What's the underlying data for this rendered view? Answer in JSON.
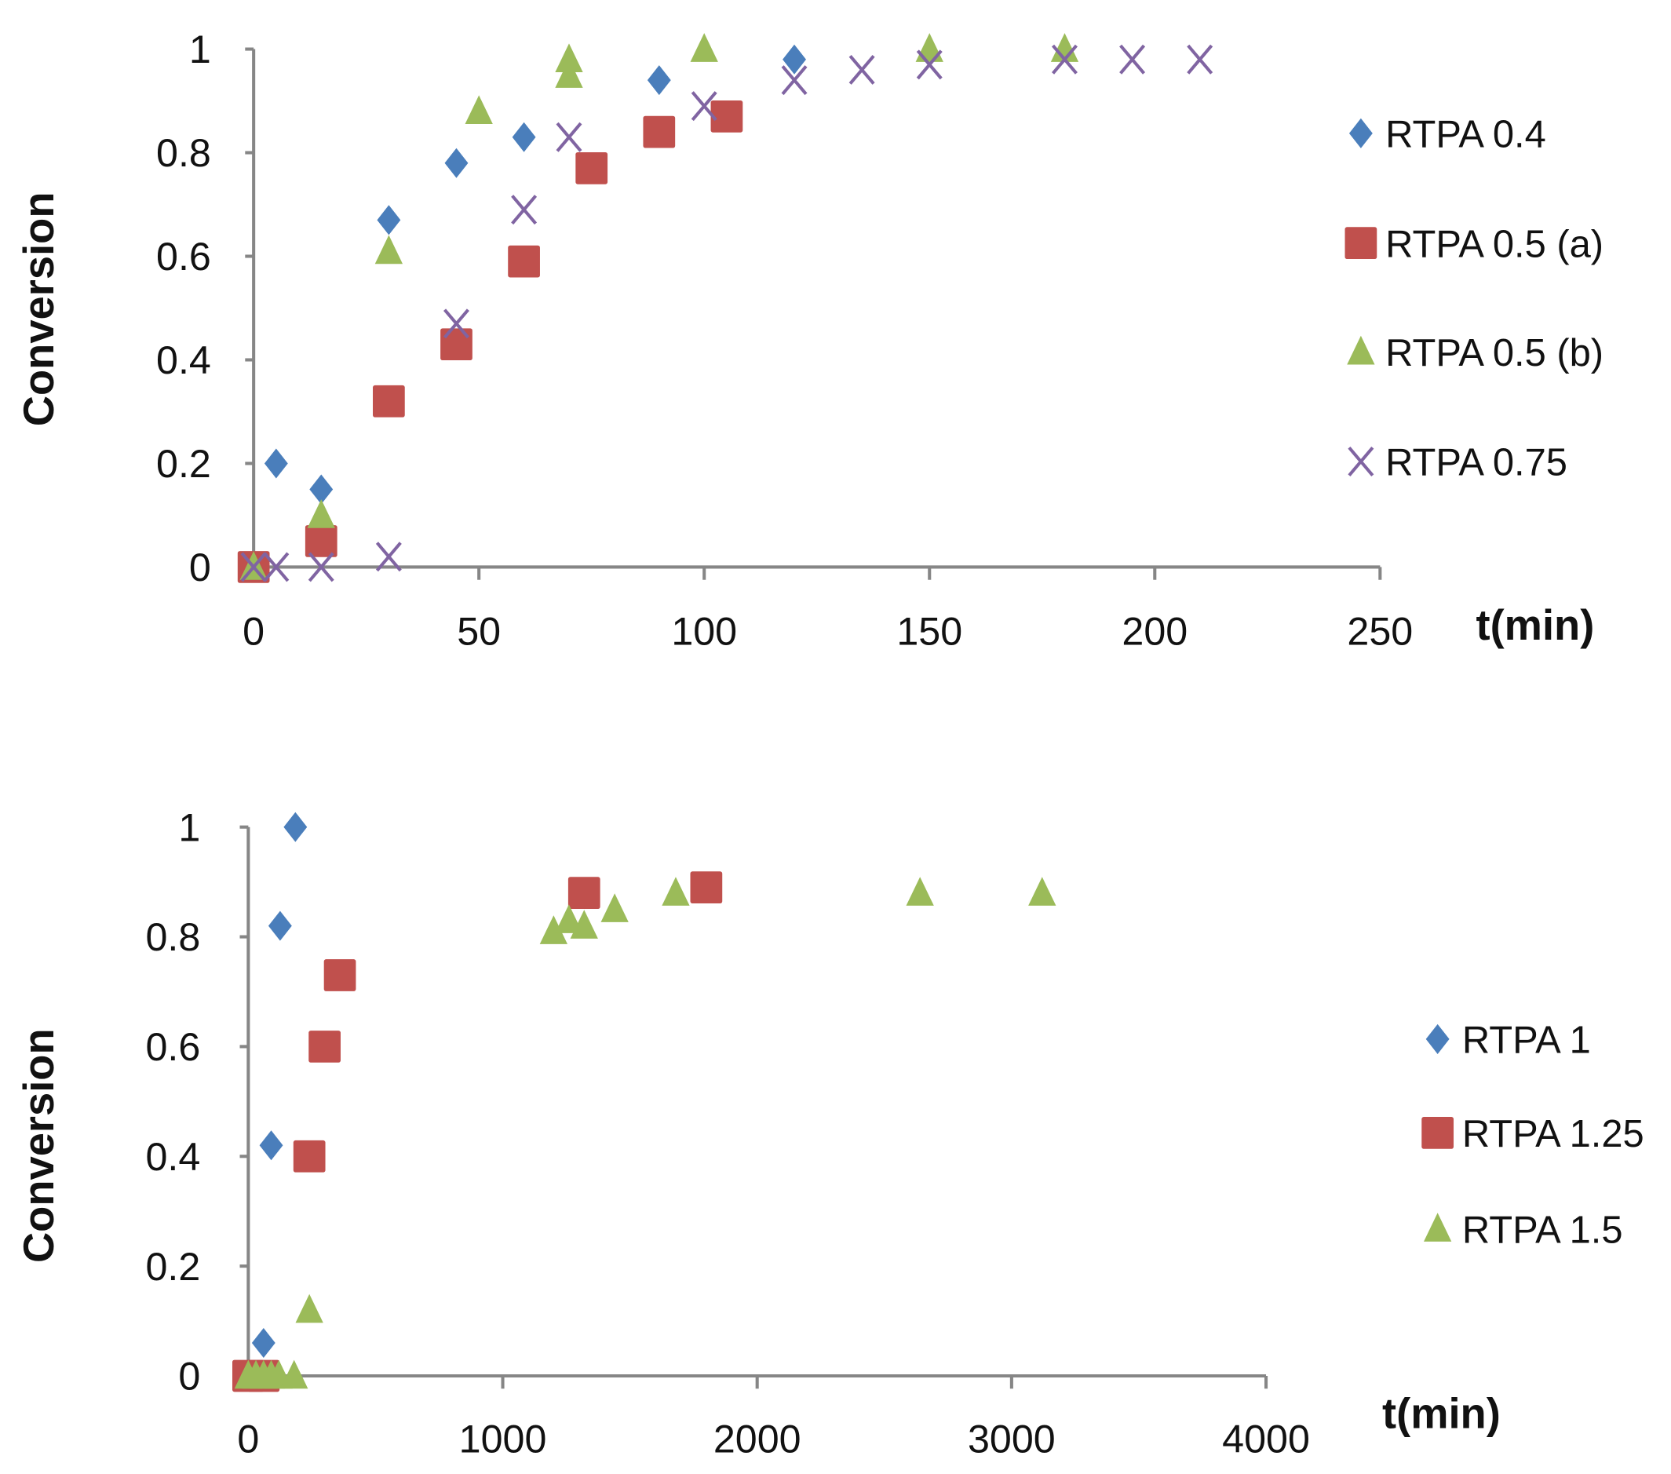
{
  "colors": {
    "blue": "#4a7ebb",
    "red": "#c0504d",
    "green": "#9bbb59",
    "purple": "#8064a2",
    "axis": "#868686"
  },
  "chart_data": [
    {
      "type": "scatter",
      "title": "",
      "xlabel": "t(min)",
      "ylabel": "Conversion",
      "xlim": [
        0,
        250
      ],
      "ylim": [
        0,
        1
      ],
      "xticks": [
        "0",
        "50",
        "100",
        "150",
        "200",
        "250"
      ],
      "yticks": [
        "0",
        "0.2",
        "0.4",
        "0.6",
        "0.8",
        "1"
      ],
      "grid": false,
      "legend_position": "right",
      "series": [
        {
          "name": "RTPA 0.4",
          "marker": "diamond",
          "color": "blue",
          "points": [
            [
              0,
              0
            ],
            [
              5,
              0.2
            ],
            [
              15,
              0.15
            ],
            [
              30,
              0.67
            ],
            [
              45,
              0.78
            ],
            [
              60,
              0.83
            ],
            [
              90,
              0.94
            ],
            [
              120,
              0.98
            ]
          ]
        },
        {
          "name": "RTPA 0.5 (a)",
          "marker": "square",
          "color": "red",
          "points": [
            [
              0,
              0
            ],
            [
              15,
              0.05
            ],
            [
              30,
              0.32
            ],
            [
              45,
              0.43
            ],
            [
              60,
              0.59
            ],
            [
              75,
              0.77
            ],
            [
              90,
              0.84
            ],
            [
              105,
              0.87
            ]
          ]
        },
        {
          "name": "RTPA 0.5 (b)",
          "marker": "triangle",
          "color": "green",
          "points": [
            [
              0,
              0
            ],
            [
              15,
              0.1
            ],
            [
              30,
              0.61
            ],
            [
              50,
              0.88
            ],
            [
              70,
              0.95
            ],
            [
              70,
              0.98
            ],
            [
              100,
              1.0
            ],
            [
              150,
              1.0
            ],
            [
              180,
              1.0
            ]
          ]
        },
        {
          "name": "RTPA 0.75",
          "marker": "x",
          "color": "purple",
          "points": [
            [
              0,
              0
            ],
            [
              5,
              0
            ],
            [
              15,
              0
            ],
            [
              30,
              0.02
            ],
            [
              45,
              0.47
            ],
            [
              60,
              0.69
            ],
            [
              70,
              0.83
            ],
            [
              100,
              0.89
            ],
            [
              120,
              0.94
            ],
            [
              135,
              0.96
            ],
            [
              150,
              0.97
            ],
            [
              180,
              0.98
            ],
            [
              195,
              0.98
            ],
            [
              210,
              0.98
            ]
          ]
        }
      ]
    },
    {
      "type": "scatter",
      "title": "",
      "xlabel": "t(min)",
      "ylabel": "Conversion",
      "xlim": [
        0,
        4000
      ],
      "ylim": [
        0,
        1
      ],
      "xticks": [
        "0",
        "1000",
        "2000",
        "3000",
        "4000"
      ],
      "yticks": [
        "0",
        "0.2",
        "0.4",
        "0.6",
        "0.8",
        "1"
      ],
      "grid": false,
      "legend_position": "right",
      "series": [
        {
          "name": "RTPA 1",
          "marker": "diamond",
          "color": "blue",
          "points": [
            [
              60,
              0.06
            ],
            [
              90,
              0.42
            ],
            [
              125,
              0.82
            ],
            [
              185,
              1.0
            ]
          ]
        },
        {
          "name": "RTPA 1.25",
          "marker": "square",
          "color": "red",
          "points": [
            [
              0,
              0
            ],
            [
              60,
              0
            ],
            [
              240,
              0.4
            ],
            [
              300,
              0.6
            ],
            [
              360,
              0.73
            ],
            [
              1320,
              0.88
            ],
            [
              1800,
              0.89
            ]
          ]
        },
        {
          "name": "RTPA 1.5",
          "marker": "triangle",
          "color": "green",
          "points": [
            [
              0,
              0
            ],
            [
              30,
              0
            ],
            [
              60,
              0
            ],
            [
              90,
              0
            ],
            [
              120,
              0
            ],
            [
              180,
              0
            ],
            [
              240,
              0.12
            ],
            [
              1200,
              0.81
            ],
            [
              1260,
              0.83
            ],
            [
              1320,
              0.82
            ],
            [
              1440,
              0.85
            ],
            [
              1680,
              0.88
            ],
            [
              2640,
              0.88
            ],
            [
              3120,
              0.88
            ]
          ]
        }
      ]
    }
  ]
}
